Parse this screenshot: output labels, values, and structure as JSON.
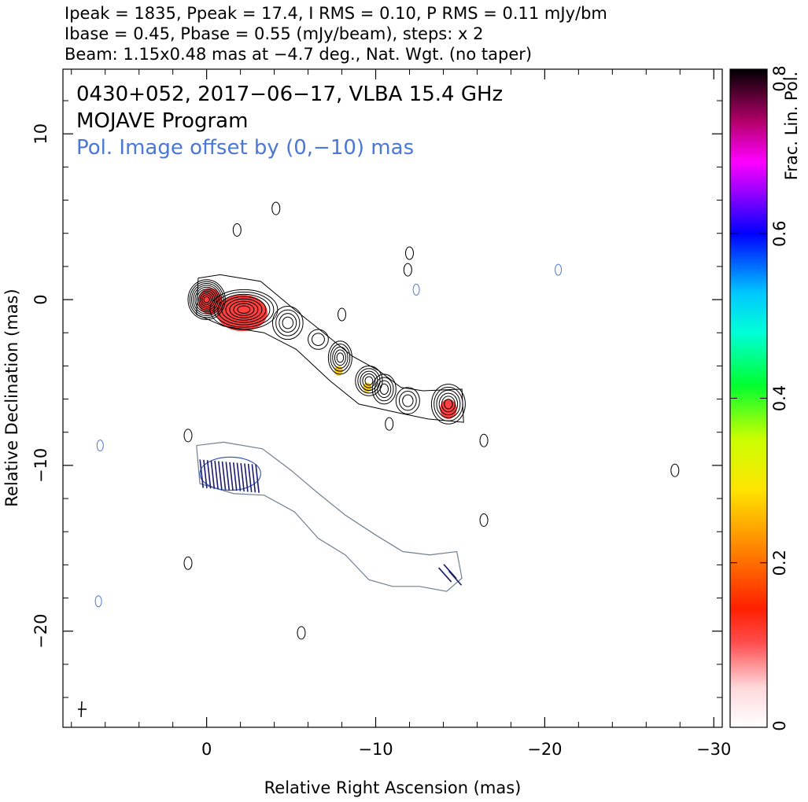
{
  "header": {
    "line1": "Ipeak = 1835, Ppeak = 17.4, I RMS = 0.10, P RMS = 0.11 mJy/bm",
    "line2": "Ibase = 0.45, Pbase = 0.55 (mJy/beam), steps: x 2",
    "line3": "Beam: 1.15x0.48 mas at −4.7 deg., Nat. Wgt. (no taper)"
  },
  "annotations": {
    "source": "0430+052, 2017−06−17, VLBA 15.4 GHz",
    "program": "MOJAVE Program",
    "pol_offset": "Pol. Image offset by (0,−10) mas"
  },
  "chart_data": {
    "type": "contour",
    "xlabel": "Relative Right Ascension (mas)",
    "ylabel": "Relative Declination (mas)",
    "xlim": [
      8.5,
      -30.5
    ],
    "ylim": [
      -25.8,
      13.9
    ],
    "x_ticks": [
      0,
      -10,
      -20,
      -30
    ],
    "x_tick_labels": [
      "0",
      "−10",
      "−20",
      "−30"
    ],
    "y_ticks": [
      10,
      0,
      -10,
      -20
    ],
    "y_tick_labels": [
      "10",
      "0",
      "−10",
      "−20"
    ],
    "colorbar": {
      "label": "Frac. Lin. Pol.",
      "range": [
        0,
        0.8
      ],
      "ticks": [
        0,
        0.2,
        0.4,
        0.6,
        0.8
      ],
      "tick_labels": [
        "0",
        "0.2",
        "0.4",
        "0.6",
        "0.8"
      ]
    },
    "total_intensity_components": [
      {
        "x": 0.0,
        "y": 0.0,
        "rx": 1.1,
        "ry": 1.2,
        "levels": 10
      },
      {
        "x": -2.2,
        "y": -0.6,
        "rx": 2.0,
        "ry": 1.2,
        "levels": 8
      },
      {
        "x": -4.8,
        "y": -1.4,
        "rx": 0.9,
        "ry": 1.0,
        "levels": 4
      },
      {
        "x": -6.6,
        "y": -2.4,
        "rx": 0.6,
        "ry": 0.6,
        "levels": 2
      },
      {
        "x": -7.9,
        "y": -3.5,
        "rx": 0.7,
        "ry": 1.0,
        "levels": 5
      },
      {
        "x": -9.6,
        "y": -4.9,
        "rx": 0.8,
        "ry": 0.9,
        "levels": 5
      },
      {
        "x": -10.5,
        "y": -5.4,
        "rx": 0.7,
        "ry": 0.9,
        "levels": 4
      },
      {
        "x": -11.9,
        "y": -6.1,
        "rx": 0.7,
        "ry": 0.8,
        "levels": 3
      },
      {
        "x": -14.3,
        "y": -6.3,
        "rx": 1.0,
        "ry": 1.2,
        "levels": 6
      }
    ],
    "fractional_pol_patches": [
      {
        "x": -0.2,
        "y": -0.1,
        "rx": 0.7,
        "ry": 0.8,
        "value": 0.1
      },
      {
        "x": -2.1,
        "y": -0.8,
        "rx": 1.5,
        "ry": 1.1,
        "value": 0.12
      },
      {
        "x": -7.8,
        "y": -4.3,
        "rx": 0.25,
        "ry": 0.3,
        "value": 0.32
      },
      {
        "x": -9.5,
        "y": -5.3,
        "rx": 0.25,
        "ry": 0.3,
        "value": 0.3
      },
      {
        "x": -14.3,
        "y": -6.6,
        "rx": 0.5,
        "ry": 0.6,
        "value": 0.14
      }
    ],
    "pol_image_offset_mas": [
      0,
      -10
    ]
  }
}
